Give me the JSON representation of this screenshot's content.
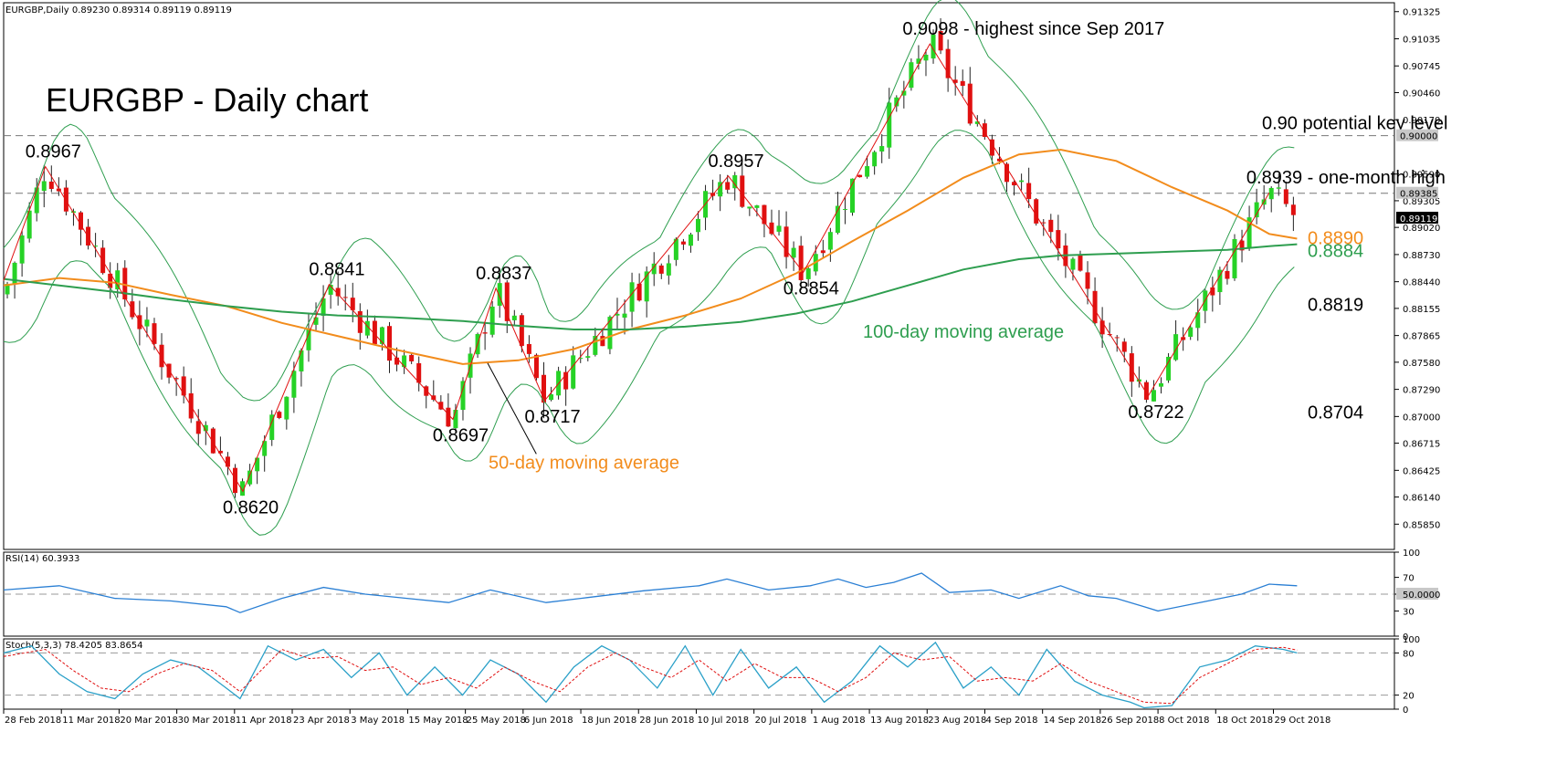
{
  "header": {
    "symbol_line": "EURGBP,Daily  0.89230 0.89314 0.89119 0.89119"
  },
  "chart_data": [
    {
      "type": "candlestick",
      "title": "EURGBP - Daily chart",
      "ylim": [
        0.8558,
        0.9142
      ],
      "price_axis_labels": [
        "0.91325",
        "0.91035",
        "0.90745",
        "0.90460",
        "0.90170",
        "0.89590",
        "0.89305",
        "0.89020",
        "0.88730",
        "0.88440",
        "0.88155",
        "0.87865",
        "0.87580",
        "0.87290",
        "0.87000",
        "0.86715",
        "0.86425",
        "0.86140",
        "0.85850"
      ],
      "price_axis_values": [
        0.91325,
        0.91035,
        0.90745,
        0.9046,
        0.9017,
        0.8959,
        0.89305,
        0.8902,
        0.8873,
        0.8844,
        0.88155,
        0.87865,
        0.8758,
        0.8729,
        0.87,
        0.86715,
        0.86425,
        0.8614,
        0.8585
      ],
      "highlighted_prices": [
        {
          "label": "0.90000",
          "value": 0.9,
          "style": "box-gray"
        },
        {
          "label": "0.89385",
          "value": 0.89385,
          "style": "box-gray"
        },
        {
          "label": "0.89119",
          "value": 0.89119,
          "style": "box-black"
        }
      ],
      "x_ticks": [
        {
          "label": "28 Feb 2018",
          "pos": 0
        },
        {
          "label": "11 Mar 2018",
          "pos": 0.0415
        },
        {
          "label": "20 Mar 2018",
          "pos": 0.083
        },
        {
          "label": "30 Mar 2018",
          "pos": 0.1245
        },
        {
          "label": "11 Apr 2018",
          "pos": 0.166
        },
        {
          "label": "23 Apr 2018",
          "pos": 0.2075
        },
        {
          "label": "3 May 2018",
          "pos": 0.249
        },
        {
          "label": "15 May 2018",
          "pos": 0.2905
        },
        {
          "label": "25 May 2018",
          "pos": 0.332
        },
        {
          "label": "6 Jun 2018",
          "pos": 0.3735
        },
        {
          "label": "18 Jun 2018",
          "pos": 0.415
        },
        {
          "label": "28 Jun 2018",
          "pos": 0.4565
        },
        {
          "label": "10 Jul 2018",
          "pos": 0.498
        },
        {
          "label": "20 Jul 2018",
          "pos": 0.5395
        },
        {
          "label": "1 Aug 2018",
          "pos": 0.581
        },
        {
          "label": "13 Aug 2018",
          "pos": 0.6225
        },
        {
          "label": "23 Aug 2018",
          "pos": 0.664
        },
        {
          "label": "4 Sep 2018",
          "pos": 0.7055
        },
        {
          "label": "14 Sep 2018",
          "pos": 0.747
        },
        {
          "label": "26 Sep 2018",
          "pos": 0.7885
        },
        {
          "label": "8 Oct 2018",
          "pos": 0.83
        },
        {
          "label": "18 Oct 2018",
          "pos": 0.8715
        },
        {
          "label": "29 Oct 2018",
          "pos": 0.913
        }
      ],
      "swing_points": [
        {
          "t": 0.03,
          "v": 0.8967,
          "label": "0.8967"
        },
        {
          "t": 0.172,
          "v": 0.862,
          "label": "0.8620"
        },
        {
          "t": 0.234,
          "v": 0.8841,
          "label": "0.8841"
        },
        {
          "t": 0.323,
          "v": 0.8697,
          "label": "0.8697"
        },
        {
          "t": 0.354,
          "v": 0.8837,
          "label": "0.8837"
        },
        {
          "t": 0.389,
          "v": 0.8717,
          "label": "0.8717"
        },
        {
          "t": 0.521,
          "v": 0.8957,
          "label": "0.8957"
        },
        {
          "t": 0.575,
          "v": 0.8854,
          "label": "0.8854"
        },
        {
          "t": 0.666,
          "v": 0.9098,
          "label": "0.9098 - highest since Sep 2017"
        },
        {
          "t": 0.823,
          "v": 0.8722,
          "label": "0.8722"
        },
        {
          "t": 0.91,
          "v": 0.8939,
          "label": "0.8939 - one-month high"
        }
      ],
      "levels": [
        {
          "label": "0.90 potential key level",
          "value": 0.9,
          "style": "dashed"
        },
        {
          "label": "",
          "value": 0.89385,
          "style": "dashed"
        }
      ],
      "series": [
        {
          "name": "50-day moving average",
          "color": "#f28c1c",
          "values": [
            [
              0,
              0.884
            ],
            [
              0.04,
              0.8848
            ],
            [
              0.08,
              0.8843
            ],
            [
              0.12,
              0.883
            ],
            [
              0.16,
              0.8818
            ],
            [
              0.2,
              0.88
            ],
            [
              0.24,
              0.8786
            ],
            [
              0.28,
              0.8772
            ],
            [
              0.33,
              0.8756
            ],
            [
              0.37,
              0.876
            ],
            [
              0.41,
              0.8772
            ],
            [
              0.45,
              0.8793
            ],
            [
              0.49,
              0.8808
            ],
            [
              0.53,
              0.8826
            ],
            [
              0.57,
              0.8853
            ],
            [
              0.61,
              0.8887
            ],
            [
              0.65,
              0.892
            ],
            [
              0.69,
              0.8955
            ],
            [
              0.73,
              0.898
            ],
            [
              0.76,
              0.8985
            ],
            [
              0.8,
              0.8973
            ],
            [
              0.84,
              0.8945
            ],
            [
              0.88,
              0.892
            ],
            [
              0.91,
              0.8895
            ],
            [
              0.93,
              0.889
            ]
          ]
        },
        {
          "name": "100-day moving average",
          "color": "#2e9e4f",
          "values": [
            [
              0,
              0.8847
            ],
            [
              0.04,
              0.884
            ],
            [
              0.08,
              0.8833
            ],
            [
              0.12,
              0.8825
            ],
            [
              0.16,
              0.8818
            ],
            [
              0.2,
              0.8812
            ],
            [
              0.24,
              0.8808
            ],
            [
              0.28,
              0.8806
            ],
            [
              0.33,
              0.8802
            ],
            [
              0.37,
              0.8797
            ],
            [
              0.41,
              0.8793
            ],
            [
              0.45,
              0.8793
            ],
            [
              0.49,
              0.8796
            ],
            [
              0.53,
              0.8801
            ],
            [
              0.57,
              0.881
            ],
            [
              0.61,
              0.8823
            ],
            [
              0.65,
              0.884
            ],
            [
              0.69,
              0.8857
            ],
            [
              0.73,
              0.8868
            ],
            [
              0.76,
              0.8872
            ],
            [
              0.8,
              0.8874
            ],
            [
              0.84,
              0.8876
            ],
            [
              0.88,
              0.8878
            ],
            [
              0.91,
              0.8882
            ],
            [
              0.93,
              0.8884
            ]
          ]
        }
      ],
      "bollinger_labels": [
        {
          "label": "0.8890",
          "value": 0.889,
          "color": "#f28c1c"
        },
        {
          "label": "0.8884",
          "value": 0.8884,
          "color": "#2e9e4f"
        },
        {
          "label": "0.8819",
          "value": 0.8819,
          "color": "#000000"
        },
        {
          "label": "0.8704",
          "value": 0.8704,
          "color": "#000000"
        }
      ],
      "annotations": [
        {
          "text": "100-day moving average",
          "color": "#2e9e4f"
        },
        {
          "text": "50-day moving average",
          "color": "#f28c1c"
        }
      ],
      "indicators": [
        {
          "name": "RSI(14) 60.3933",
          "ylim": [
            0,
            100
          ],
          "axis_labels": [
            "100",
            "70",
            "50.0000",
            "30",
            "0"
          ],
          "axis_values": [
            100,
            70,
            50,
            30,
            0
          ],
          "values": [
            [
              0,
              55
            ],
            [
              0.04,
              60
            ],
            [
              0.08,
              45
            ],
            [
              0.12,
              42
            ],
            [
              0.16,
              35
            ],
            [
              0.17,
              28
            ],
            [
              0.2,
              45
            ],
            [
              0.23,
              58
            ],
            [
              0.26,
              50
            ],
            [
              0.29,
              45
            ],
            [
              0.32,
              40
            ],
            [
              0.35,
              55
            ],
            [
              0.39,
              40
            ],
            [
              0.42,
              46
            ],
            [
              0.46,
              54
            ],
            [
              0.5,
              60
            ],
            [
              0.52,
              68
            ],
            [
              0.55,
              55
            ],
            [
              0.58,
              60
            ],
            [
              0.6,
              68
            ],
            [
              0.62,
              58
            ],
            [
              0.64,
              64
            ],
            [
              0.66,
              75
            ],
            [
              0.68,
              52
            ],
            [
              0.71,
              55
            ],
            [
              0.73,
              45
            ],
            [
              0.76,
              60
            ],
            [
              0.78,
              48
            ],
            [
              0.8,
              45
            ],
            [
              0.82,
              35
            ],
            [
              0.83,
              30
            ],
            [
              0.86,
              40
            ],
            [
              0.89,
              50
            ],
            [
              0.91,
              62
            ],
            [
              0.93,
              60
            ]
          ]
        },
        {
          "name": "Stoch(5,3,3) 78.4205 83.8654",
          "ylim": [
            0,
            100
          ],
          "axis_labels": [
            "100",
            "80",
            "20",
            "0"
          ],
          "axis_values": [
            100,
            80,
            20,
            0
          ],
          "values": [
            [
              0,
              80
            ],
            [
              0.02,
              90
            ],
            [
              0.04,
              50
            ],
            [
              0.06,
              25
            ],
            [
              0.08,
              15
            ],
            [
              0.1,
              50
            ],
            [
              0.12,
              70
            ],
            [
              0.14,
              60
            ],
            [
              0.16,
              30
            ],
            [
              0.17,
              15
            ],
            [
              0.19,
              90
            ],
            [
              0.21,
              70
            ],
            [
              0.23,
              85
            ],
            [
              0.25,
              45
            ],
            [
              0.27,
              80
            ],
            [
              0.29,
              20
            ],
            [
              0.31,
              60
            ],
            [
              0.33,
              20
            ],
            [
              0.35,
              70
            ],
            [
              0.37,
              50
            ],
            [
              0.39,
              10
            ],
            [
              0.41,
              60
            ],
            [
              0.43,
              90
            ],
            [
              0.45,
              70
            ],
            [
              0.47,
              30
            ],
            [
              0.49,
              90
            ],
            [
              0.51,
              20
            ],
            [
              0.53,
              85
            ],
            [
              0.55,
              30
            ],
            [
              0.57,
              60
            ],
            [
              0.59,
              10
            ],
            [
              0.61,
              40
            ],
            [
              0.63,
              90
            ],
            [
              0.65,
              60
            ],
            [
              0.67,
              95
            ],
            [
              0.69,
              30
            ],
            [
              0.71,
              60
            ],
            [
              0.73,
              20
            ],
            [
              0.75,
              85
            ],
            [
              0.77,
              40
            ],
            [
              0.79,
              20
            ],
            [
              0.81,
              10
            ],
            [
              0.82,
              2
            ],
            [
              0.84,
              5
            ],
            [
              0.86,
              60
            ],
            [
              0.88,
              70
            ],
            [
              0.9,
              90
            ],
            [
              0.92,
              85
            ],
            [
              0.93,
              80
            ]
          ],
          "signal": [
            [
              0,
              75
            ],
            [
              0.03,
              85
            ],
            [
              0.05,
              55
            ],
            [
              0.07,
              30
            ],
            [
              0.09,
              25
            ],
            [
              0.11,
              50
            ],
            [
              0.13,
              65
            ],
            [
              0.15,
              55
            ],
            [
              0.17,
              25
            ],
            [
              0.2,
              85
            ],
            [
              0.22,
              72
            ],
            [
              0.24,
              75
            ],
            [
              0.26,
              55
            ],
            [
              0.28,
              60
            ],
            [
              0.3,
              35
            ],
            [
              0.32,
              45
            ],
            [
              0.34,
              30
            ],
            [
              0.36,
              60
            ],
            [
              0.38,
              40
            ],
            [
              0.4,
              25
            ],
            [
              0.42,
              60
            ],
            [
              0.44,
              80
            ],
            [
              0.46,
              60
            ],
            [
              0.48,
              45
            ],
            [
              0.5,
              70
            ],
            [
              0.52,
              40
            ],
            [
              0.54,
              65
            ],
            [
              0.56,
              45
            ],
            [
              0.58,
              45
            ],
            [
              0.6,
              25
            ],
            [
              0.62,
              45
            ],
            [
              0.64,
              80
            ],
            [
              0.66,
              70
            ],
            [
              0.68,
              75
            ],
            [
              0.7,
              40
            ],
            [
              0.72,
              45
            ],
            [
              0.74,
              40
            ],
            [
              0.76,
              65
            ],
            [
              0.78,
              40
            ],
            [
              0.8,
              25
            ],
            [
              0.82,
              10
            ],
            [
              0.84,
              8
            ],
            [
              0.86,
              45
            ],
            [
              0.88,
              65
            ],
            [
              0.9,
              85
            ],
            [
              0.92,
              88
            ],
            [
              0.93,
              84
            ]
          ]
        }
      ]
    }
  ]
}
